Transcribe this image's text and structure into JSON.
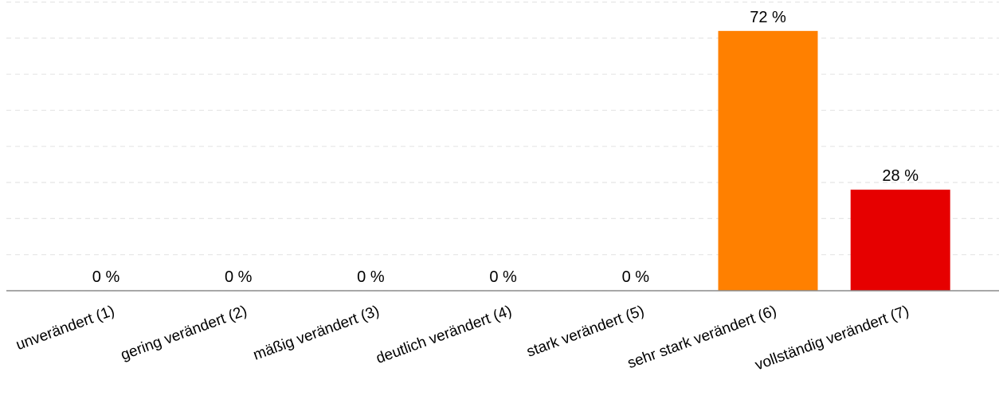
{
  "chart_data": {
    "type": "bar",
    "categories": [
      "unverändert (1)",
      "gering verändert (2)",
      "mäßig verändert (3)",
      "deutlich verändert (4)",
      "stark verändert (5)",
      "sehr stark verändert (6)",
      "vollständig verändert (7)"
    ],
    "values": [
      0,
      0,
      0,
      0,
      0,
      72,
      28
    ],
    "value_labels": [
      "0 %",
      "0 %",
      "0 %",
      "0 %",
      "0 %",
      "72 %",
      "28 %"
    ],
    "colors": [
      "#5b9bd5",
      "#c7a6d6",
      "#8fbf6a",
      "#d4c45a",
      "#f2b84b",
      "#ff8000",
      "#e60000"
    ],
    "ylim": [
      0,
      80
    ],
    "grid": true,
    "title": "",
    "xlabel": "",
    "ylabel": ""
  }
}
